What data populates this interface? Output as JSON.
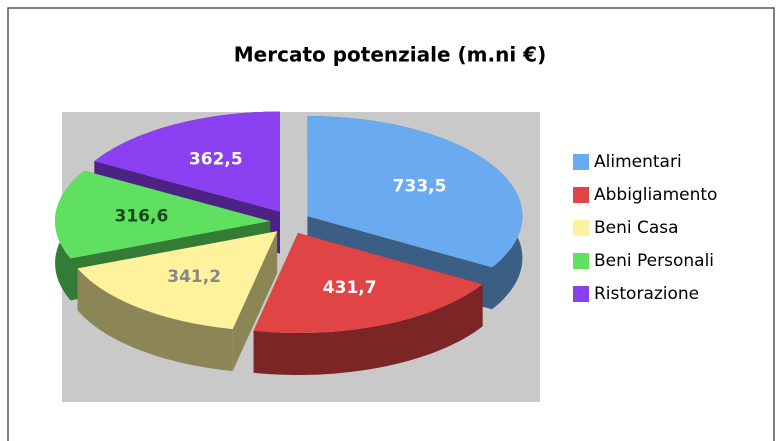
{
  "chart_data": {
    "type": "pie3d",
    "title": "Mercato potenziale (m.ni €)",
    "categories": [
      "Alimentari",
      "Abbigliamento",
      "Beni Casa",
      "Beni Personali",
      "Ristorazione"
    ],
    "values": [
      733.5,
      431.7,
      341.2,
      316.6,
      362.5
    ],
    "value_labels": [
      "733,5",
      "431,7",
      "341,2",
      "316,6",
      "362,5"
    ],
    "colors": [
      "#6aaaf0",
      "#e04444",
      "#fff29c",
      "#5fe060",
      "#8a3ff0"
    ],
    "legend": "right"
  }
}
